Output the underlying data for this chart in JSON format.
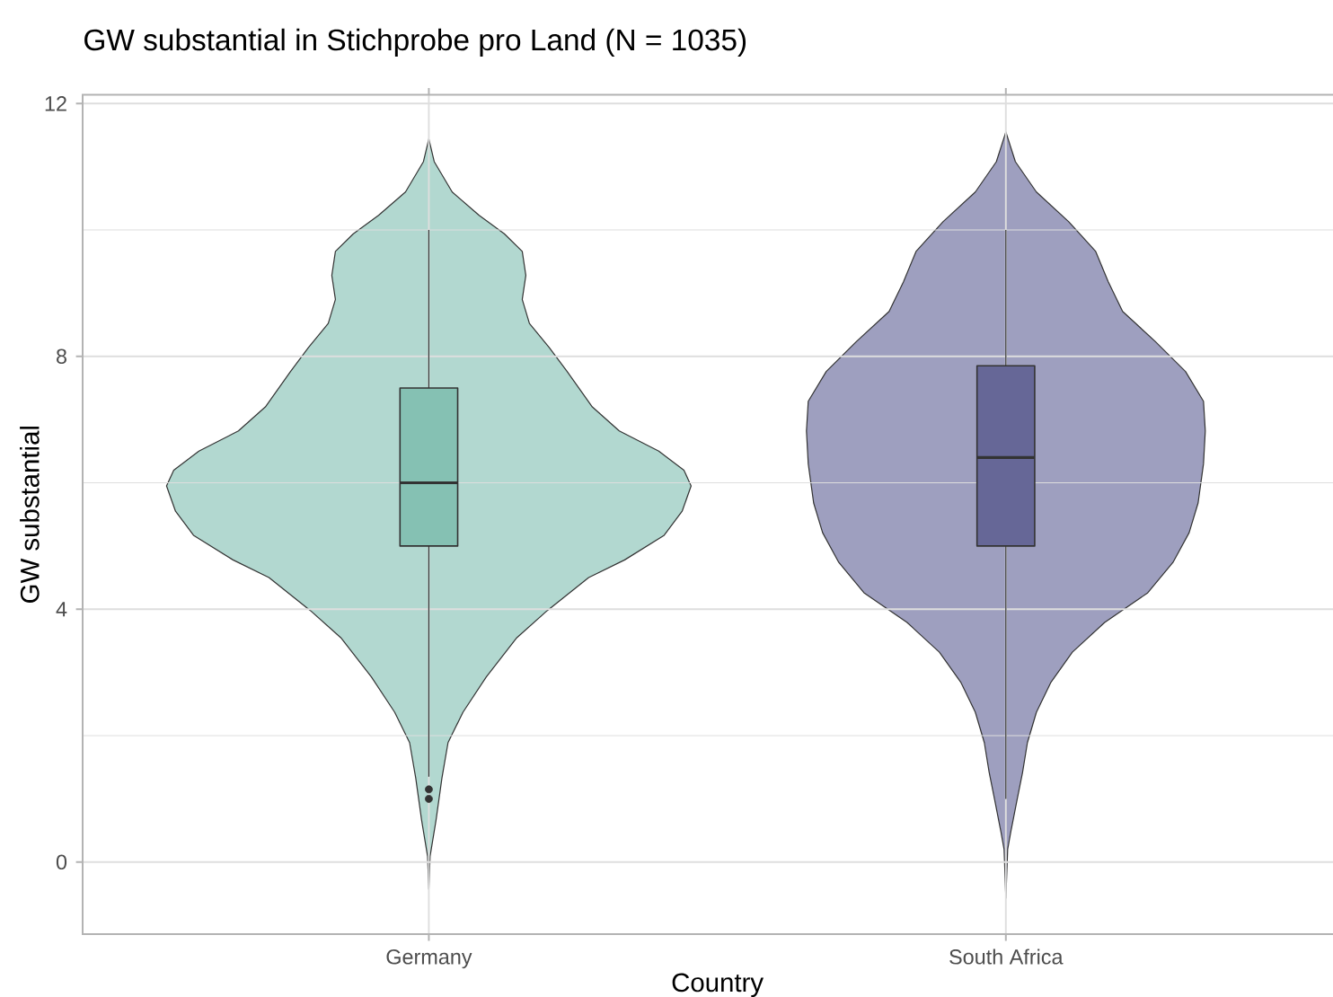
{
  "chart_data": {
    "type": "box",
    "title": "GW substantial in Stichprobe pro Land (N = 1035)",
    "xlabel": "Country",
    "ylabel": "GW substantial",
    "categories": [
      "Germany",
      "South Africa"
    ],
    "boxes": [
      {
        "low": 1.35,
        "q1": 5,
        "median": 6,
        "q3": 7.5,
        "high": 10,
        "outliers": [
          1.15,
          1.0
        ]
      },
      {
        "low": 1.0,
        "q1": 5,
        "median": 6.4,
        "q3": 7.85,
        "high": 10
      }
    ],
    "colors": [
      "#85c1b3",
      "#666797"
    ],
    "ylim": [
      -1.14,
      12.14
    ],
    "yticks": [
      0,
      4,
      8,
      12
    ],
    "grid": true
  }
}
